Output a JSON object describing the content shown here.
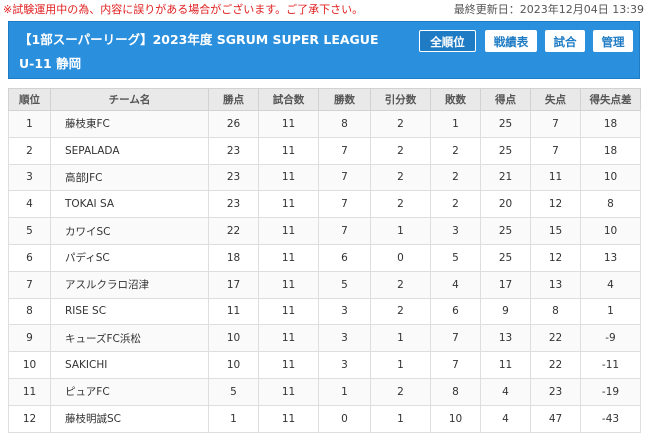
{
  "notice": "※試験運用中の為、内容に誤りがある場合がございます。ご了承下さい。",
  "last_updated": "最終更新日：2023年12月04日 13:39",
  "header": {
    "title": "【1部スーパーリーグ】2023年度 SGRUM SUPER LEAGUE U-11 静岡",
    "buttons": [
      {
        "label": "全順位",
        "active": true
      },
      {
        "label": "戦績表",
        "active": false
      },
      {
        "label": "試合",
        "active": false
      },
      {
        "label": "管理",
        "active": false
      }
    ]
  },
  "table": {
    "columns": [
      "順位",
      "チーム名",
      "勝点",
      "試合数",
      "勝数",
      "引分数",
      "敗数",
      "得点",
      "失点",
      "得失点差"
    ],
    "rows": [
      [
        "1",
        "藤枝東FC",
        "26",
        "11",
        "8",
        "2",
        "1",
        "25",
        "7",
        "18"
      ],
      [
        "2",
        "SEPALADA",
        "23",
        "11",
        "7",
        "2",
        "2",
        "25",
        "7",
        "18"
      ],
      [
        "3",
        "高部JFC",
        "23",
        "11",
        "7",
        "2",
        "2",
        "21",
        "11",
        "10"
      ],
      [
        "4",
        "TOKAI SA",
        "23",
        "11",
        "7",
        "2",
        "2",
        "20",
        "12",
        "8"
      ],
      [
        "5",
        "カワイSC",
        "22",
        "11",
        "7",
        "1",
        "3",
        "25",
        "15",
        "10"
      ],
      [
        "6",
        "パディSC",
        "18",
        "11",
        "6",
        "0",
        "5",
        "25",
        "12",
        "13"
      ],
      [
        "7",
        "アスルクラロ沼津",
        "17",
        "11",
        "5",
        "2",
        "4",
        "17",
        "13",
        "4"
      ],
      [
        "8",
        "RISE SC",
        "11",
        "11",
        "3",
        "2",
        "6",
        "9",
        "8",
        "1"
      ],
      [
        "9",
        "キューズFC浜松",
        "10",
        "11",
        "3",
        "1",
        "7",
        "13",
        "22",
        "-9"
      ],
      [
        "10",
        "SAKICHI",
        "10",
        "11",
        "3",
        "1",
        "7",
        "11",
        "22",
        "-11"
      ],
      [
        "11",
        "ピュアFC",
        "5",
        "11",
        "1",
        "2",
        "8",
        "4",
        "23",
        "-19"
      ],
      [
        "12",
        "藤枝明誠SC",
        "1",
        "11",
        "0",
        "1",
        "10",
        "4",
        "47",
        "-43"
      ]
    ]
  }
}
